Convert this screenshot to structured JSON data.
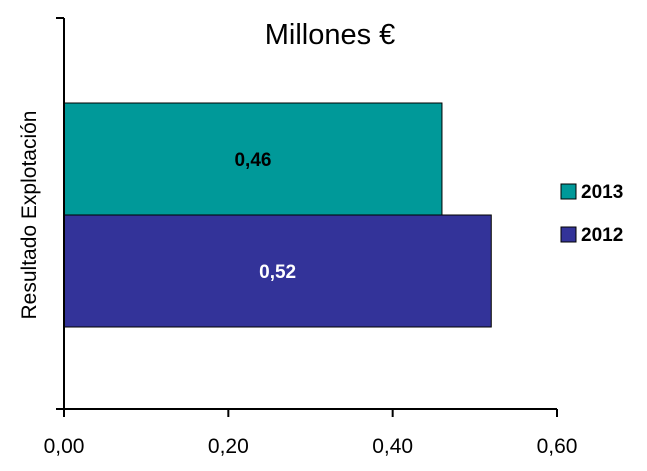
{
  "chart_data": {
    "type": "bar",
    "orientation": "horizontal",
    "title": "Millones €",
    "xlabel": "",
    "ylabel": "Resultado Explotación",
    "xlim": [
      0,
      0.6
    ],
    "x_ticks": [
      "0,00",
      "0,20",
      "0,40",
      "0,60"
    ],
    "x_tick_values": [
      0,
      0.2,
      0.4,
      0.6
    ],
    "categories": [
      "Resultado Explotación"
    ],
    "series": [
      {
        "name": "2013",
        "values": [
          0.46
        ],
        "label": "0,46",
        "color": "#009999",
        "label_color": "#000000"
      },
      {
        "name": "2012",
        "values": [
          0.52
        ],
        "label": "0,52",
        "color": "#333399",
        "label_color": "#ffffff"
      }
    ],
    "grid": false,
    "legend": "right"
  }
}
